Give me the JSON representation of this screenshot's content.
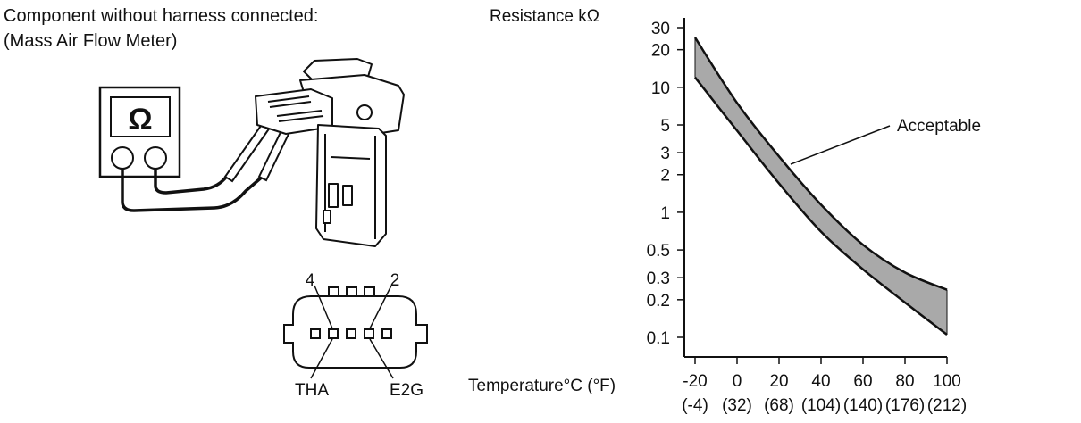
{
  "caption": {
    "line1": "Component without harness connected:",
    "line2": "(Mass Air Flow Meter)"
  },
  "meter": {
    "symbol": "Ω"
  },
  "connector": {
    "pin_left": "4",
    "pin_right": "2",
    "terminal_left": "THA",
    "terminal_right": "E2G"
  },
  "chart_data": {
    "type": "area",
    "ylabel": "Resistance kΩ",
    "xlabel": "Temperature°C (°F)",
    "yscale": "log",
    "ylim": [
      0.1,
      30
    ],
    "xlim": [
      -20,
      100
    ],
    "y_ticks": [
      "30",
      "20",
      "10",
      "5",
      "3",
      "2",
      "1",
      "0.5",
      "0.3",
      "0.2",
      "0.1"
    ],
    "y_tick_values": [
      30,
      20,
      10,
      5,
      3,
      2,
      1,
      0.5,
      0.3,
      0.2,
      0.1
    ],
    "x_ticks": [
      "-20",
      "0",
      "20",
      "40",
      "60",
      "80",
      "100"
    ],
    "x_tick_values": [
      -20,
      0,
      20,
      40,
      60,
      80,
      100
    ],
    "x_ticks_f": [
      "(-4)",
      "(32)",
      "(68)",
      "(104)",
      "(140)",
      "(176)",
      "(212)"
    ],
    "band_upper": {
      "x": [
        -20,
        0,
        20,
        40,
        60,
        80,
        100
      ],
      "y": [
        25,
        7.5,
        2.8,
        1.15,
        0.55,
        0.33,
        0.24
      ]
    },
    "band_lower": {
      "x": [
        -20,
        0,
        20,
        40,
        60,
        80,
        100
      ],
      "y": [
        12,
        4.5,
        1.7,
        0.7,
        0.35,
        0.19,
        0.105
      ]
    },
    "annotation": "Acceptable",
    "grid": false
  }
}
